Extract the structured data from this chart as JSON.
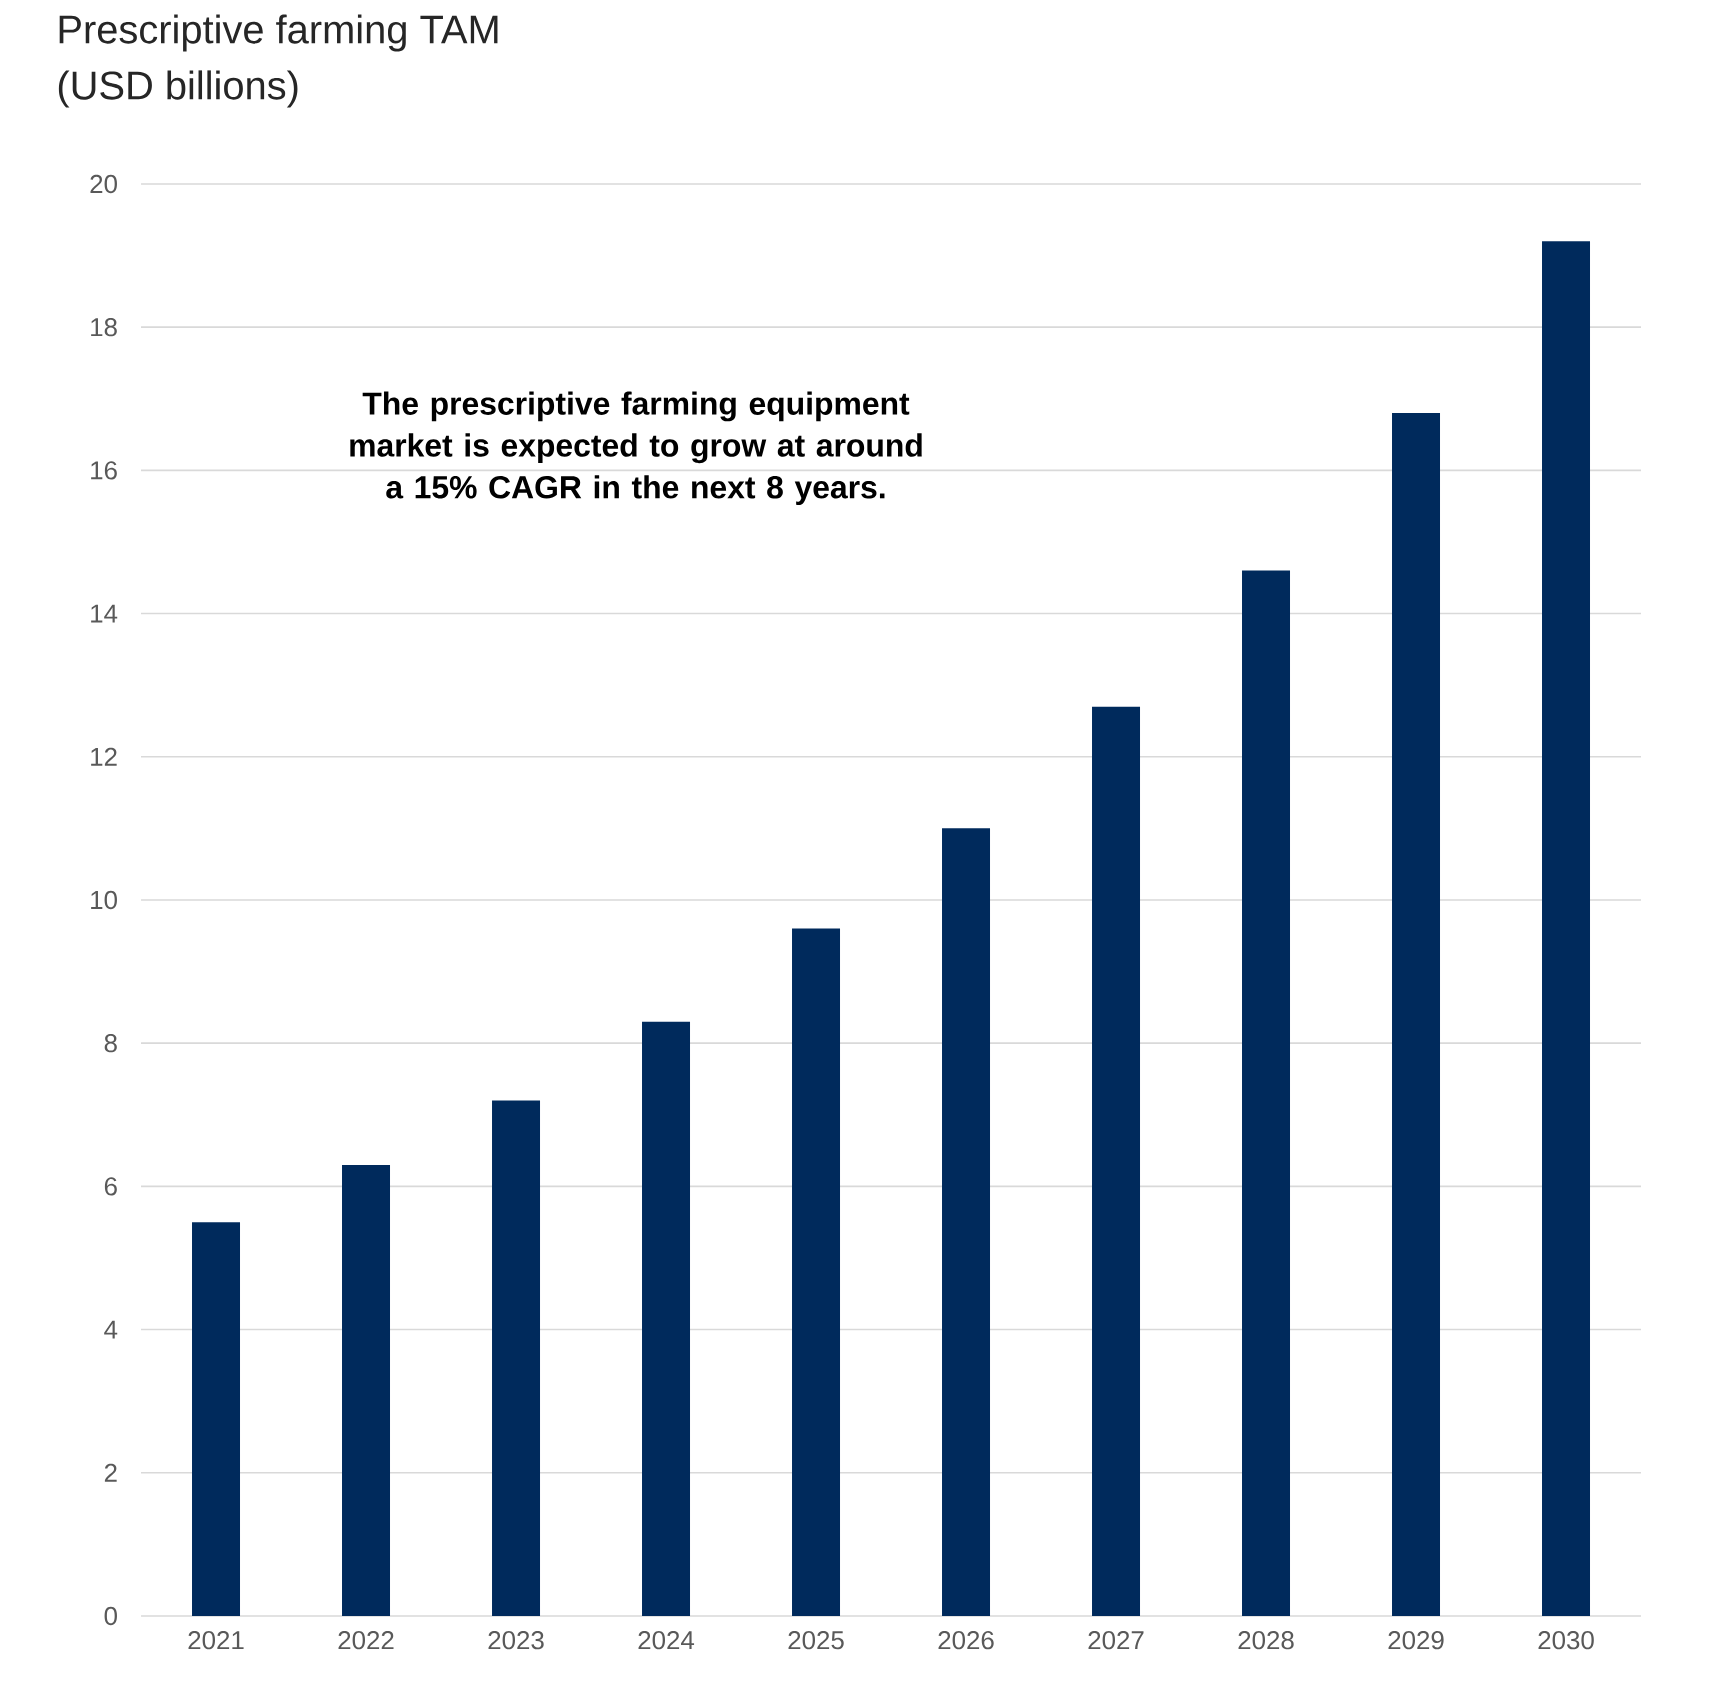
{
  "chart_data": {
    "type": "bar",
    "title": "Prescriptive farming TAM",
    "subtitle": "(USD billions)",
    "categories": [
      "2021",
      "2022",
      "2023",
      "2024",
      "2025",
      "2026",
      "2027",
      "2028",
      "2029",
      "2030"
    ],
    "values": [
      5.5,
      6.3,
      7.2,
      8.3,
      9.6,
      11.0,
      12.7,
      14.6,
      16.8,
      19.2
    ],
    "color": "#002a5c",
    "ylim": [
      0,
      20
    ],
    "yticks": [
      0,
      2,
      4,
      6,
      8,
      10,
      12,
      14,
      16,
      18,
      20
    ],
    "grid": "y",
    "annotations": [
      "**The prescriptive farming equipment market is expected to grow at around a 15% CAGR in the next 8 years.**"
    ]
  }
}
